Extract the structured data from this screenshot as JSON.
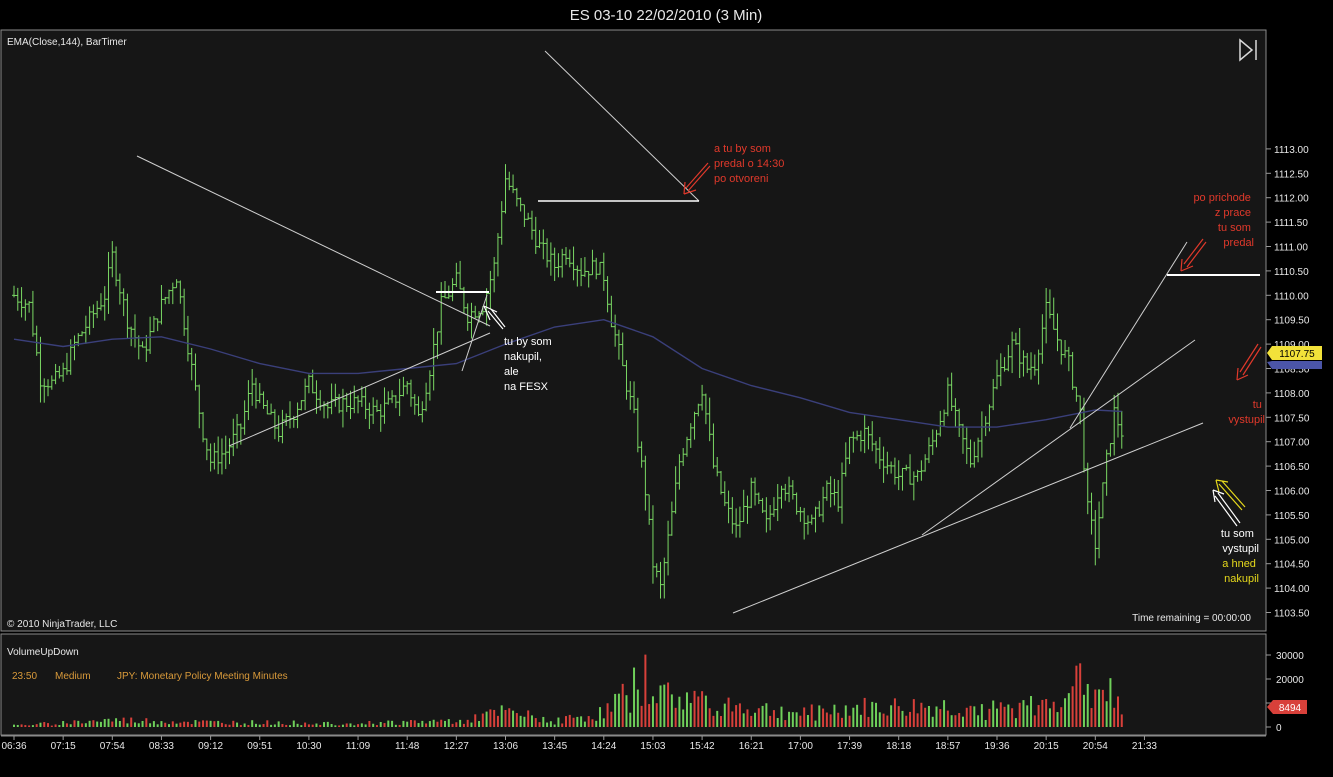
{
  "window": {
    "title": "ES 03-10  22/02/2010 (3 Min)"
  },
  "price_panel": {
    "indicator_label": "EMA(Close,144), BarTimer",
    "copyright": "© 2010 NinjaTrader, LLC",
    "time_remaining": "Time remaining = 00:00:00",
    "last_price_badge": "1107.75",
    "ema_badge": "1107.62",
    "play_icon": "play-forward-icon"
  },
  "volume_panel": {
    "label": "VolumeUpDown",
    "event_time": "23:50",
    "event_impact": "Medium",
    "event_text": "JPY: Monetary Policy Meeting Minutes",
    "last_volume_badge": "8494"
  },
  "annotations": [
    {
      "lines": [
        "tu by som",
        "nakupil,",
        "ale",
        "na FESX"
      ],
      "color": "#ffffff"
    },
    {
      "lines": [
        "a tu by som",
        "predal o 14:30",
        "po otvoreni"
      ],
      "color": "#e0392b"
    },
    {
      "lines": [
        "po prichode",
        "z prace",
        "tu som",
        "predal"
      ],
      "color": "#e0392b"
    },
    {
      "lines": [
        "tu",
        "vystupil"
      ],
      "color": "#e0392b"
    },
    {
      "lines": [
        "tu som",
        "vystupil"
      ],
      "color": "#ffffff"
    },
    {
      "lines": [
        "a hned",
        "nakupil"
      ],
      "color": "#e5d81c"
    }
  ],
  "colors": {
    "background": "#161616",
    "up_bar": "#6fd05a",
    "down_bar": "#d8403a",
    "ema": "#3a3f7a",
    "trendline": "#cfcfcf",
    "badge_price": "#f2e23a",
    "badge_ema": "#4b55a8",
    "badge_volume": "#d8403a"
  },
  "chart_data": [
    {
      "type": "ohlc",
      "title": "ES 03-10  22/02/2010 (3 Min)",
      "series_name": "EMA(Close,144)",
      "ylim": [
        1103.3,
        1113.0
      ],
      "y_ticks": [
        "1103.50",
        "1104.00",
        "1104.50",
        "1105.00",
        "1105.50",
        "1106.00",
        "1106.50",
        "1107.00",
        "1107.50",
        "1108.00",
        "1108.50",
        "1109.00",
        "1109.50",
        "1110.00",
        "1110.50",
        "1111.00",
        "1111.50",
        "1112.00",
        "1112.50",
        "1113.00"
      ],
      "x_ticks": [
        "06:36",
        "07:15",
        "07:54",
        "08:33",
        "09:12",
        "09:51",
        "10:30",
        "11:09",
        "11:48",
        "12:27",
        "13:06",
        "13:45",
        "14:24",
        "15:03",
        "15:42",
        "16:21",
        "17:00",
        "17:39",
        "18:18",
        "18:57",
        "19:36",
        "20:15",
        "20:54",
        "21:33"
      ],
      "close_path": [
        [
          "06:36",
          1110.0
        ],
        [
          "06:48",
          1109.8
        ],
        [
          "06:57",
          1108.3
        ],
        [
          "07:06",
          1108.2
        ],
        [
          "07:15",
          1108.4
        ],
        [
          "07:24",
          1109.0
        ],
        [
          "07:36",
          1109.5
        ],
        [
          "07:48",
          1110.0
        ],
        [
          "07:54",
          1110.8
        ],
        [
          "08:06",
          1109.5
        ],
        [
          "08:18",
          1108.8
        ],
        [
          "08:33",
          1109.8
        ],
        [
          "08:45",
          1110.4
        ],
        [
          "08:57",
          1108.5
        ],
        [
          "09:06",
          1107.2
        ],
        [
          "09:12",
          1106.6
        ],
        [
          "09:24",
          1106.8
        ],
        [
          "09:36",
          1107.3
        ],
        [
          "09:45",
          1108.2
        ],
        [
          "09:51",
          1107.8
        ],
        [
          "10:06",
          1107.2
        ],
        [
          "10:18",
          1107.6
        ],
        [
          "10:30",
          1108.2
        ],
        [
          "10:45",
          1107.7
        ],
        [
          "10:57",
          1107.8
        ],
        [
          "11:09",
          1107.8
        ],
        [
          "11:24",
          1107.6
        ],
        [
          "11:36",
          1107.8
        ],
        [
          "11:48",
          1108.2
        ],
        [
          "11:57",
          1107.5
        ],
        [
          "12:06",
          1108.5
        ],
        [
          "12:15",
          1109.8
        ],
        [
          "12:27",
          1110.3
        ],
        [
          "12:36",
          1109.6
        ],
        [
          "12:48",
          1109.8
        ],
        [
          "12:57",
          1110.6
        ],
        [
          "13:06",
          1112.4
        ],
        [
          "13:15",
          1111.9
        ],
        [
          "13:24",
          1111.5
        ],
        [
          "13:33",
          1111.0
        ],
        [
          "13:45",
          1110.6
        ],
        [
          "13:54",
          1110.9
        ],
        [
          "14:06",
          1110.5
        ],
        [
          "14:18",
          1110.6
        ],
        [
          "14:24",
          1110.4
        ],
        [
          "14:30",
          1109.5
        ],
        [
          "14:39",
          1108.5
        ],
        [
          "14:48",
          1107.5
        ],
        [
          "14:57",
          1106.0
        ],
        [
          "15:03",
          1104.5
        ],
        [
          "15:09",
          1104.0
        ],
        [
          "15:18",
          1105.5
        ],
        [
          "15:24",
          1106.6
        ],
        [
          "15:33",
          1107.4
        ],
        [
          "15:42",
          1108.1
        ],
        [
          "15:51",
          1106.5
        ],
        [
          "16:00",
          1105.7
        ],
        [
          "16:09",
          1105.2
        ],
        [
          "16:21",
          1106.0
        ],
        [
          "16:33",
          1105.3
        ],
        [
          "16:45",
          1106.2
        ],
        [
          "16:57",
          1105.7
        ],
        [
          "17:09",
          1105.3
        ],
        [
          "17:21",
          1106.0
        ],
        [
          "17:30",
          1105.8
        ],
        [
          "17:39",
          1107.0
        ],
        [
          "17:51",
          1107.2
        ],
        [
          "18:03",
          1106.7
        ],
        [
          "18:18",
          1106.3
        ],
        [
          "18:33",
          1106.3
        ],
        [
          "18:45",
          1107.0
        ],
        [
          "18:57",
          1108.0
        ],
        [
          "19:06",
          1107.2
        ],
        [
          "19:15",
          1106.6
        ],
        [
          "19:24",
          1107.3
        ],
        [
          "19:36",
          1108.3
        ],
        [
          "19:48",
          1109.0
        ],
        [
          "20:00",
          1108.5
        ],
        [
          "20:06",
          1108.6
        ],
        [
          "20:15",
          1109.7
        ],
        [
          "20:24",
          1109.1
        ],
        [
          "20:33",
          1108.6
        ],
        [
          "20:42",
          1107.6
        ],
        [
          "20:48",
          1105.6
        ],
        [
          "20:54",
          1104.9
        ],
        [
          "21:03",
          1106.6
        ],
        [
          "21:09",
          1107.6
        ],
        [
          "21:15",
          1107.2
        ]
      ],
      "ema_path": [
        [
          "06:36",
          1109.1
        ],
        [
          "07:15",
          1108.95
        ],
        [
          "07:54",
          1109.1
        ],
        [
          "08:33",
          1109.15
        ],
        [
          "09:12",
          1108.9
        ],
        [
          "09:51",
          1108.6
        ],
        [
          "10:30",
          1108.4
        ],
        [
          "11:09",
          1108.4
        ],
        [
          "11:48",
          1108.5
        ],
        [
          "12:27",
          1108.6
        ],
        [
          "13:06",
          1109.0
        ],
        [
          "13:45",
          1109.35
        ],
        [
          "14:24",
          1109.5
        ],
        [
          "15:03",
          1109.15
        ],
        [
          "15:42",
          1108.5
        ],
        [
          "16:21",
          1108.15
        ],
        [
          "17:00",
          1107.9
        ],
        [
          "17:39",
          1107.6
        ],
        [
          "18:18",
          1107.45
        ],
        [
          "18:57",
          1107.3
        ],
        [
          "19:36",
          1107.3
        ],
        [
          "20:15",
          1107.45
        ],
        [
          "20:54",
          1107.65
        ],
        [
          "21:15",
          1107.62
        ]
      ],
      "last_price": 1107.75,
      "ema_last": 1107.62
    },
    {
      "type": "bar",
      "title": "VolumeUpDown",
      "ylim": [
        0,
        35000
      ],
      "y_ticks": [
        "0",
        "10000",
        "20000",
        "30000"
      ],
      "last_value": 8494,
      "peaks": [
        [
          "06:36",
          1000
        ],
        [
          "07:54",
          4500
        ],
        [
          "09:12",
          3000
        ],
        [
          "11:09",
          2500
        ],
        [
          "12:27",
          4000
        ],
        [
          "13:06",
          9500
        ],
        [
          "13:45",
          4000
        ],
        [
          "14:24",
          9000
        ],
        [
          "14:39",
          20000
        ],
        [
          "14:51",
          27000
        ],
        [
          "15:00",
          33000
        ],
        [
          "15:12",
          20000
        ],
        [
          "15:42",
          18000
        ],
        [
          "16:21",
          12000
        ],
        [
          "17:00",
          9000
        ],
        [
          "17:39",
          12000
        ],
        [
          "18:57",
          13000
        ],
        [
          "19:36",
          11000
        ],
        [
          "20:15",
          14000
        ],
        [
          "20:39",
          33000
        ],
        [
          "20:48",
          18000
        ],
        [
          "20:57",
          25000
        ],
        [
          "21:03",
          29000
        ],
        [
          "21:09",
          32000
        ],
        [
          "21:15",
          8494
        ]
      ]
    }
  ]
}
